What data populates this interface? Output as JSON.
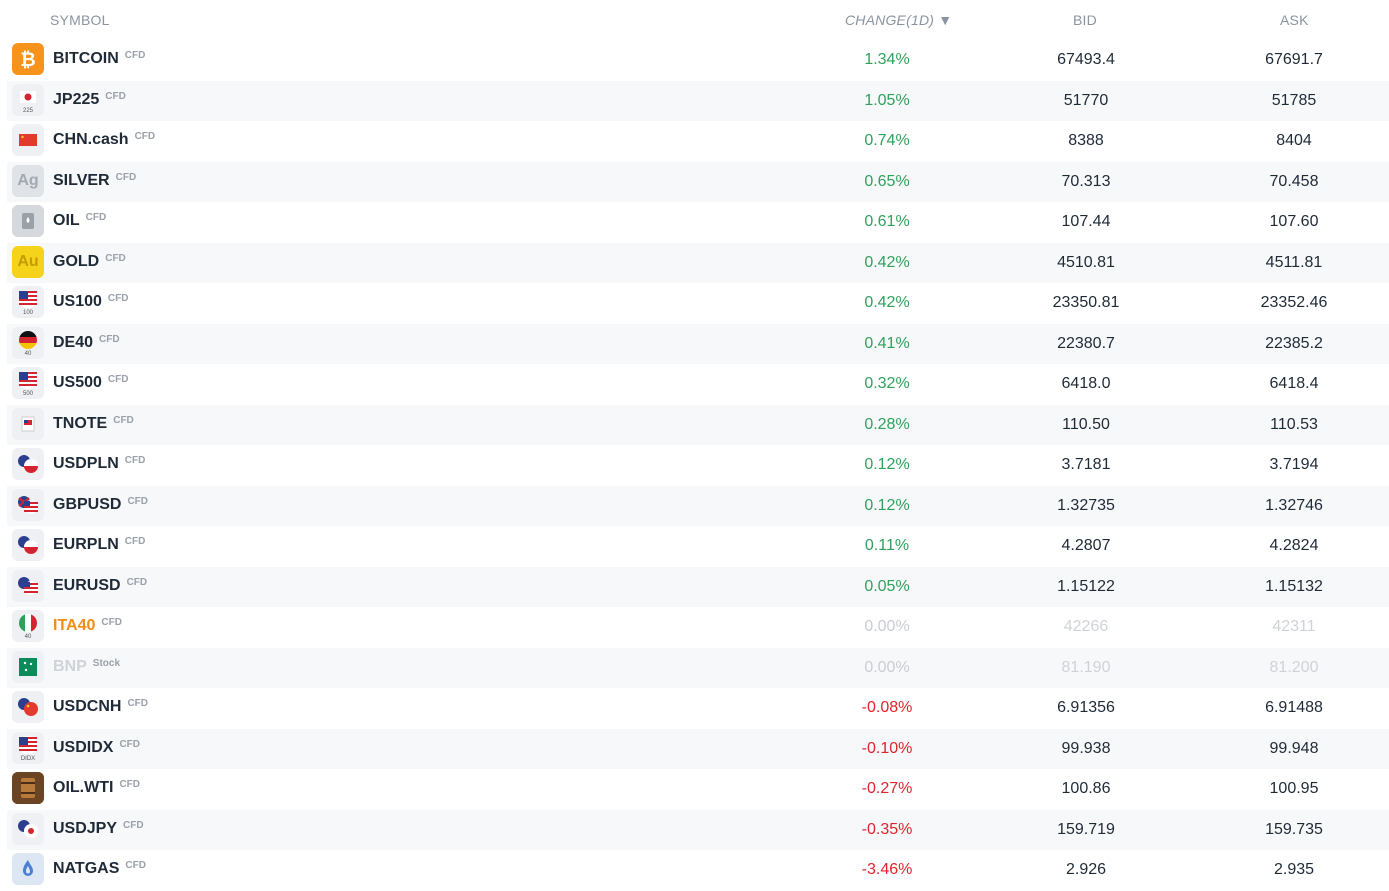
{
  "header": {
    "symbol": "SYMBOL",
    "change": "CHANGE(1D) ▼",
    "bid": "BID",
    "ask": "ASK"
  },
  "colors": {
    "positive": "#2fa15b",
    "negative": "#e0242c",
    "neutral": "#c9cdd3",
    "highlight": "#f08c1a"
  },
  "rows": [
    {
      "symbol": "BITCOIN",
      "type": "CFD",
      "change": "1.34%",
      "bid": "67493.4",
      "ask": "67691.7",
      "icon": "bitcoin-icon"
    },
    {
      "symbol": "JP225",
      "type": "CFD",
      "change": "1.05%",
      "bid": "51770",
      "ask": "51785",
      "icon": "japan-flag-icon",
      "icon_label": "225"
    },
    {
      "symbol": "CHN.cash",
      "type": "CFD",
      "change": "0.74%",
      "bid": "8388",
      "ask": "8404",
      "icon": "china-flag-icon"
    },
    {
      "symbol": "SILVER",
      "type": "CFD",
      "change": "0.65%",
      "bid": "70.313",
      "ask": "70.458",
      "icon": "silver-icon",
      "icon_label": "Ag"
    },
    {
      "symbol": "OIL",
      "type": "CFD",
      "change": "0.61%",
      "bid": "107.44",
      "ask": "107.60",
      "icon": "oil-barrel-icon"
    },
    {
      "symbol": "GOLD",
      "type": "CFD",
      "change": "0.42%",
      "bid": "4510.81",
      "ask": "4511.81",
      "icon": "gold-icon",
      "icon_label": "Au"
    },
    {
      "symbol": "US100",
      "type": "CFD",
      "change": "0.42%",
      "bid": "23350.81",
      "ask": "23352.46",
      "icon": "us-flag-icon",
      "icon_label": "100"
    },
    {
      "symbol": "DE40",
      "type": "CFD",
      "change": "0.41%",
      "bid": "22380.7",
      "ask": "22385.2",
      "icon": "germany-flag-icon",
      "icon_label": "40"
    },
    {
      "symbol": "US500",
      "type": "CFD",
      "change": "0.32%",
      "bid": "6418.0",
      "ask": "6418.4",
      "icon": "us-flag-icon",
      "icon_label": "500"
    },
    {
      "symbol": "TNOTE",
      "type": "CFD",
      "change": "0.28%",
      "bid": "110.50",
      "ask": "110.53",
      "icon": "tnote-icon"
    },
    {
      "symbol": "USDPLN",
      "type": "CFD",
      "change": "0.12%",
      "bid": "3.7181",
      "ask": "3.7194",
      "icon": "usd-pln-flags-icon"
    },
    {
      "symbol": "GBPUSD",
      "type": "CFD",
      "change": "0.12%",
      "bid": "1.32735",
      "ask": "1.32746",
      "icon": "gbp-usd-flags-icon"
    },
    {
      "symbol": "EURPLN",
      "type": "CFD",
      "change": "0.11%",
      "bid": "4.2807",
      "ask": "4.2824",
      "icon": "eur-pln-flags-icon"
    },
    {
      "symbol": "EURUSD",
      "type": "CFD",
      "change": "0.05%",
      "bid": "1.15122",
      "ask": "1.15132",
      "icon": "eur-usd-flags-icon"
    },
    {
      "symbol": "ITA40",
      "type": "CFD",
      "change": "0.00%",
      "bid": "42266",
      "ask": "42311",
      "icon": "italy-flag-icon",
      "icon_label": "40"
    },
    {
      "symbol": "BNP",
      "type": "Stock",
      "change": "0.00%",
      "bid": "81.190",
      "ask": "81.200",
      "icon": "bnp-logo-icon"
    },
    {
      "symbol": "USDCNH",
      "type": "CFD",
      "change": "-0.08%",
      "bid": "6.91356",
      "ask": "6.91488",
      "icon": "usd-cnh-flags-icon"
    },
    {
      "symbol": "USDIDX",
      "type": "CFD",
      "change": "-0.10%",
      "bid": "99.938",
      "ask": "99.948",
      "icon": "us-flag-icon",
      "icon_label": "DIDX"
    },
    {
      "symbol": "OIL.WTI",
      "type": "CFD",
      "change": "-0.27%",
      "bid": "100.86",
      "ask": "100.95",
      "icon": "wti-barrel-icon"
    },
    {
      "symbol": "USDJPY",
      "type": "CFD",
      "change": "-0.35%",
      "bid": "159.719",
      "ask": "159.735",
      "icon": "usd-jpy-flags-icon"
    },
    {
      "symbol": "NATGAS",
      "type": "CFD",
      "change": "-3.46%",
      "bid": "2.926",
      "ask": "2.935",
      "icon": "gas-flame-icon"
    }
  ]
}
